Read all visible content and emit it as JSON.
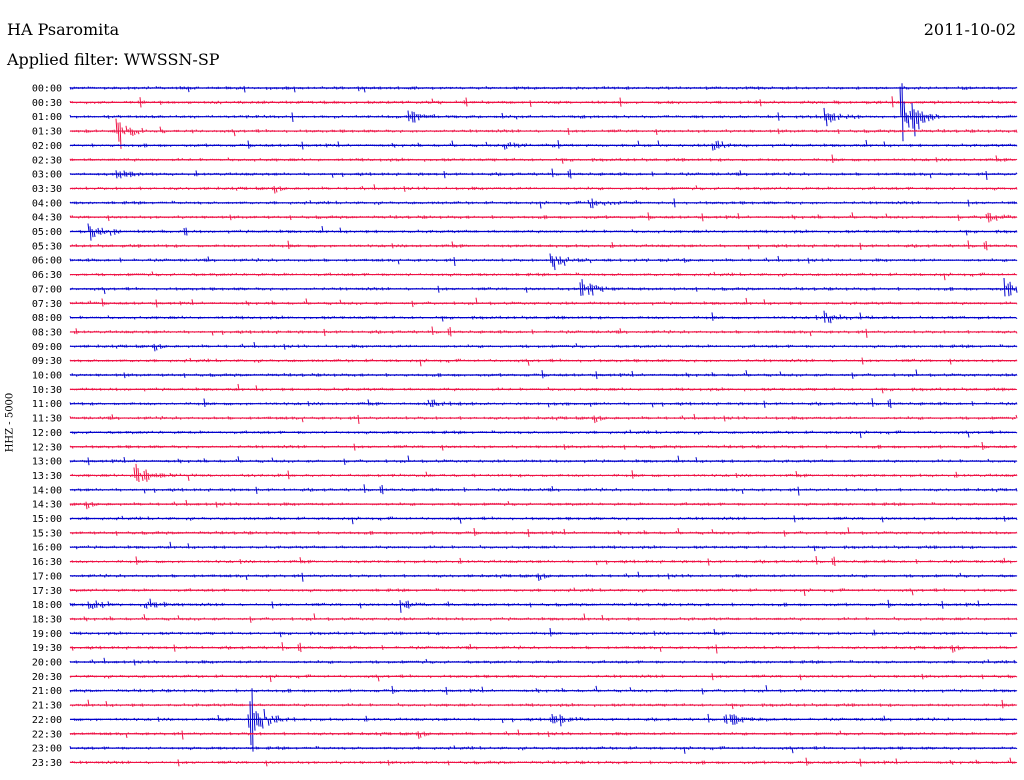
{
  "header": {
    "station": "HA Psaromita",
    "filter_label": "Applied filter: WWSSN-SP",
    "date": "2011-10-02"
  },
  "chart_data": {
    "type": "line",
    "title": "HA Psaromita",
    "ylabel": "HHZ - 5000",
    "colors": {
      "even": "#0000cc",
      "odd": "#ee1144"
    },
    "rows": [
      "00:00",
      "00:30",
      "01:00",
      "01:30",
      "02:00",
      "02:30",
      "03:00",
      "03:30",
      "04:00",
      "04:30",
      "05:00",
      "05:30",
      "06:00",
      "06:30",
      "07:00",
      "07:30",
      "08:00",
      "08:30",
      "09:00",
      "09:30",
      "10:00",
      "10:30",
      "11:00",
      "11:30",
      "12:00",
      "12:30",
      "13:00",
      "13:30",
      "14:00",
      "14:30",
      "15:00",
      "15:30",
      "16:00",
      "16:30",
      "17:00",
      "17:30",
      "18:00",
      "18:30",
      "19:00",
      "19:30",
      "20:00",
      "20:30",
      "21:00",
      "21:30",
      "22:00",
      "22:30",
      "23:00",
      "23:30"
    ],
    "events": [
      {
        "row": 2,
        "x": 0.88,
        "amplitude": 85
      },
      {
        "row": 2,
        "x": 0.8,
        "amplitude": 12
      },
      {
        "row": 2,
        "x": 0.36,
        "amplitude": 10
      },
      {
        "row": 3,
        "x": 0.05,
        "amplitude": 25
      },
      {
        "row": 4,
        "x": 0.46,
        "amplitude": 8
      },
      {
        "row": 4,
        "x": 0.68,
        "amplitude": 10
      },
      {
        "row": 6,
        "x": 0.05,
        "amplitude": 8
      },
      {
        "row": 8,
        "x": 0.55,
        "amplitude": 8
      },
      {
        "row": 9,
        "x": 0.97,
        "amplitude": 8
      },
      {
        "row": 10,
        "x": 0.02,
        "amplitude": 12
      },
      {
        "row": 12,
        "x": 0.51,
        "amplitude": 14
      },
      {
        "row": 14,
        "x": 0.54,
        "amplitude": 24
      },
      {
        "row": 14,
        "x": 0.99,
        "amplitude": 16
      },
      {
        "row": 16,
        "x": 0.8,
        "amplitude": 12
      },
      {
        "row": 22,
        "x": 0.38,
        "amplitude": 8
      },
      {
        "row": 27,
        "x": 0.07,
        "amplitude": 20
      },
      {
        "row": 36,
        "x": 0.02,
        "amplitude": 8
      },
      {
        "row": 36,
        "x": 0.35,
        "amplitude": 12
      },
      {
        "row": 36,
        "x": 0.08,
        "amplitude": 16
      },
      {
        "row": 44,
        "x": 0.19,
        "amplitude": 70
      },
      {
        "row": 44,
        "x": 0.7,
        "amplitude": 10
      },
      {
        "row": 44,
        "x": 0.51,
        "amplitude": 8
      }
    ]
  }
}
